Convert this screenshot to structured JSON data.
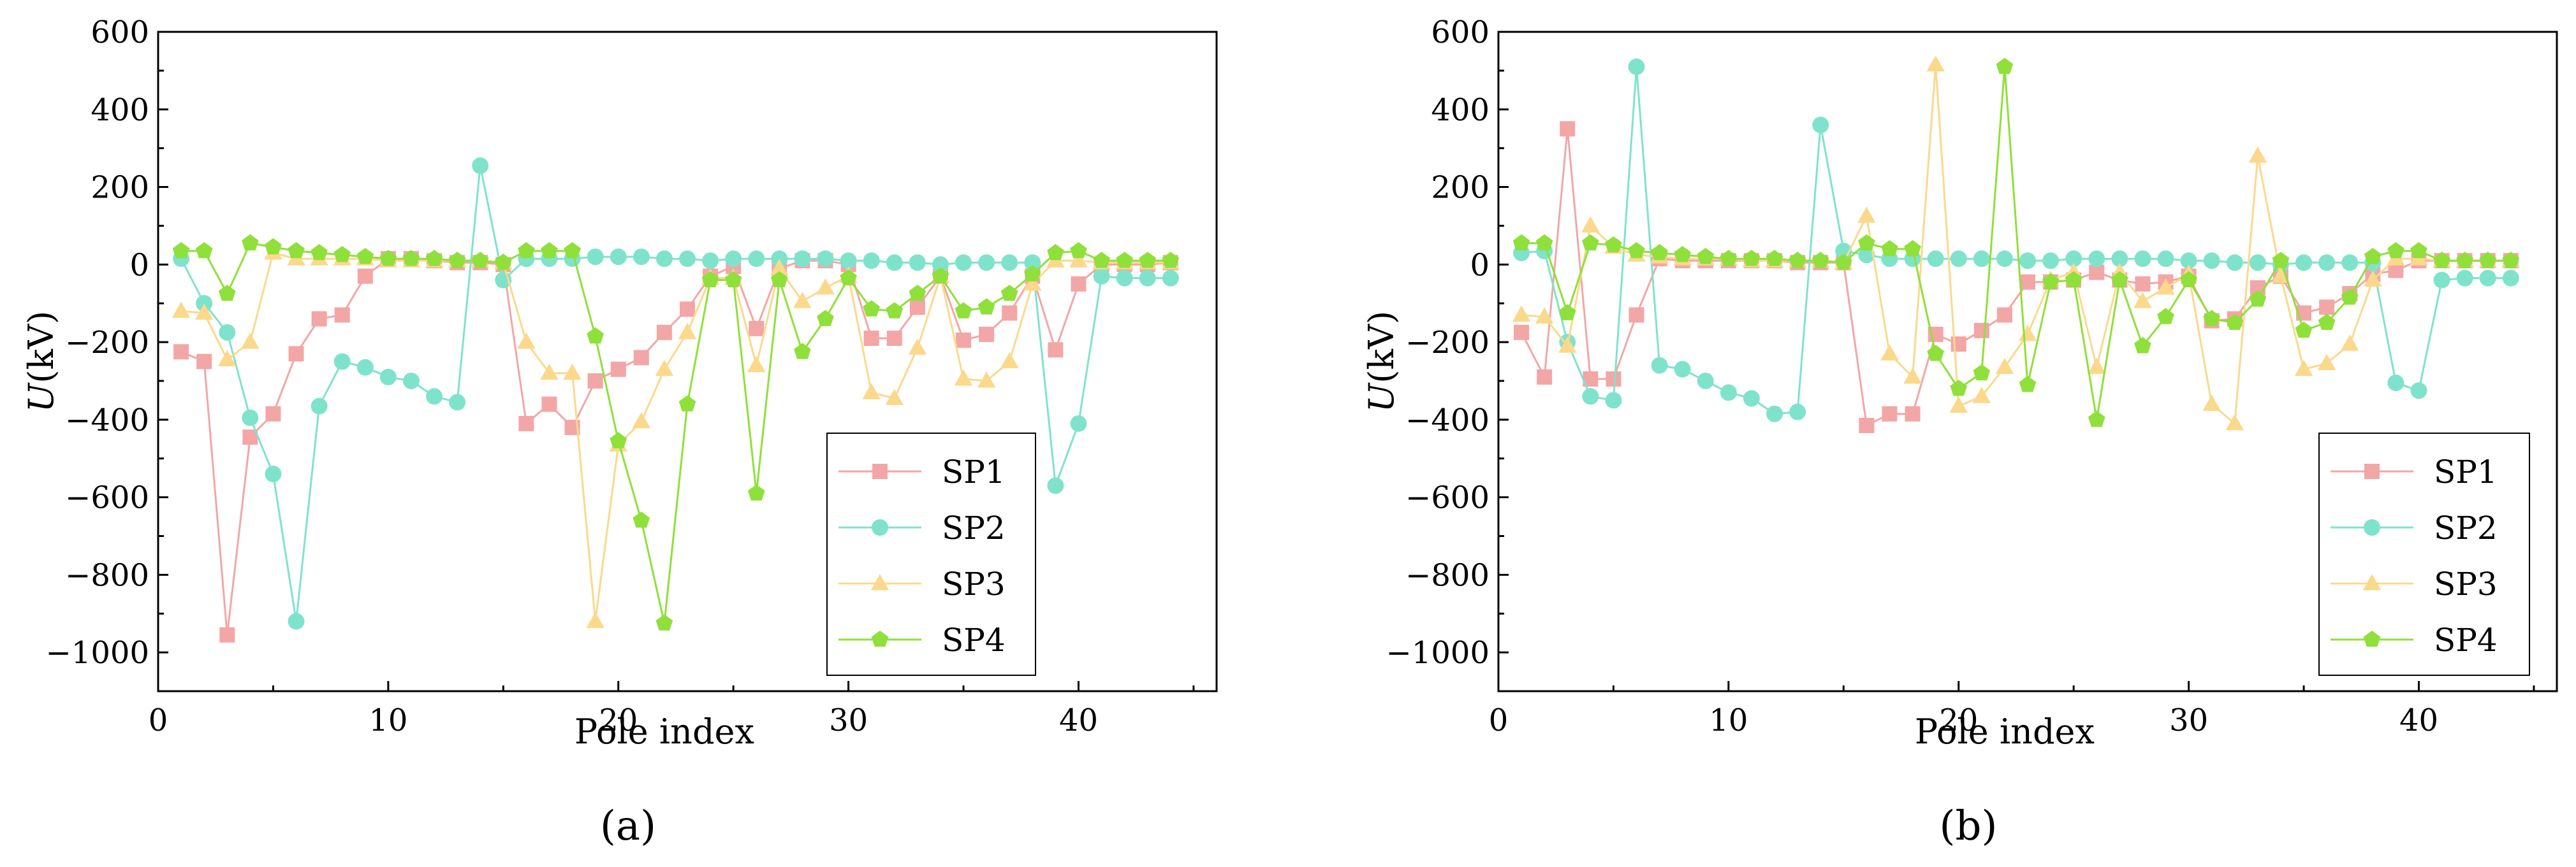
{
  "chart_data": [
    {
      "panel": "(a)",
      "type": "line",
      "xlabel": "Pole index",
      "ylabel_italic": "U",
      "ylabel_unit": "(kV)",
      "xlim": [
        0,
        46
      ],
      "ylim": [
        -1100,
        600
      ],
      "xticks": [
        0,
        10,
        20,
        30,
        40
      ],
      "yticks": [
        600,
        400,
        200,
        0,
        -200,
        -400,
        -600,
        -800,
        -1000
      ],
      "ytick_labels": [
        "600",
        "400",
        "200",
        "0",
        "−200",
        "−400",
        "−600",
        "−800",
        "−1000"
      ],
      "x": [
        1,
        2,
        3,
        4,
        5,
        6,
        7,
        8,
        9,
        10,
        11,
        12,
        13,
        14,
        15,
        16,
        17,
        18,
        19,
        20,
        21,
        22,
        23,
        24,
        25,
        26,
        27,
        28,
        29,
        30,
        31,
        32,
        33,
        34,
        35,
        36,
        37,
        38,
        39,
        40,
        41,
        42,
        43,
        44
      ],
      "series": [
        {
          "name": "SP1",
          "color": "#f3a6a6",
          "marker": "square",
          "values": [
            -225,
            -250,
            -955,
            -445,
            -385,
            -230,
            -140,
            -130,
            -30,
            15,
            15,
            10,
            5,
            5,
            0,
            -410,
            -360,
            -420,
            -300,
            -270,
            -240,
            -175,
            -115,
            -30,
            -5,
            -165,
            -10,
            10,
            10,
            0,
            -190,
            -190,
            -110,
            -30,
            -195,
            -180,
            -125,
            -30,
            -220,
            -50,
            0,
            0,
            0,
            5
          ]
        },
        {
          "name": "SP2",
          "color": "#7fe3cc",
          "marker": "circle",
          "values": [
            15,
            -100,
            -175,
            -395,
            -540,
            -920,
            -365,
            -250,
            -265,
            -290,
            -300,
            -340,
            -355,
            255,
            -40,
            15,
            15,
            15,
            20,
            20,
            20,
            15,
            15,
            10,
            15,
            15,
            15,
            15,
            15,
            10,
            10,
            5,
            5,
            0,
            5,
            5,
            5,
            5,
            -570,
            -410,
            -30,
            -35,
            -35,
            -35
          ]
        },
        {
          "name": "SP3",
          "color": "#fbd98c",
          "marker": "triangle",
          "values": [
            -120,
            -125,
            -245,
            -200,
            30,
            15,
            15,
            15,
            15,
            10,
            10,
            10,
            10,
            10,
            5,
            -200,
            -280,
            -280,
            -920,
            -465,
            -405,
            -270,
            -175,
            -35,
            -35,
            -260,
            -10,
            -95,
            -60,
            -30,
            -330,
            -345,
            -215,
            -30,
            -295,
            -300,
            -250,
            -50,
            10,
            10,
            5,
            5,
            5,
            5
          ]
        },
        {
          "name": "SP4",
          "color": "#8fe03a",
          "marker": "pentagon",
          "values": [
            35,
            35,
            -75,
            55,
            45,
            35,
            30,
            25,
            20,
            15,
            15,
            15,
            10,
            10,
            5,
            35,
            35,
            35,
            -185,
            -455,
            -660,
            -925,
            -360,
            -40,
            -40,
            -590,
            -40,
            -225,
            -140,
            -35,
            -115,
            -120,
            -75,
            -30,
            -120,
            -110,
            -75,
            -25,
            30,
            35,
            10,
            10,
            10,
            10
          ]
        }
      ]
    },
    {
      "panel": "(b)",
      "type": "line",
      "xlabel": "Pole index",
      "ylabel_italic": "U",
      "ylabel_unit": "(kV)",
      "xlim": [
        0,
        46
      ],
      "ylim": [
        -1100,
        600
      ],
      "xticks": [
        0,
        10,
        20,
        30,
        40
      ],
      "yticks": [
        600,
        400,
        200,
        0,
        -200,
        -400,
        -600,
        -800,
        -1000
      ],
      "ytick_labels": [
        "600",
        "400",
        "200",
        "0",
        "−200",
        "−400",
        "−600",
        "−800",
        "−1000"
      ],
      "x": [
        1,
        2,
        3,
        4,
        5,
        6,
        7,
        8,
        9,
        10,
        11,
        12,
        13,
        14,
        15,
        16,
        17,
        18,
        19,
        20,
        21,
        22,
        23,
        24,
        25,
        26,
        27,
        28,
        29,
        30,
        31,
        32,
        33,
        34,
        35,
        36,
        37,
        38,
        39,
        40,
        41,
        42,
        43,
        44
      ],
      "series": [
        {
          "name": "SP1",
          "color": "#f3a6a6",
          "marker": "square",
          "values": [
            -175,
            -290,
            350,
            -295,
            -295,
            -130,
            15,
            10,
            10,
            10,
            10,
            10,
            5,
            5,
            5,
            -415,
            -385,
            -385,
            -180,
            -205,
            -170,
            -130,
            -45,
            -45,
            -40,
            -20,
            -40,
            -50,
            -45,
            -30,
            -145,
            -140,
            -60,
            -30,
            -125,
            -110,
            -75,
            -25,
            -15,
            10,
            10,
            10,
            10,
            10
          ]
        },
        {
          "name": "SP2",
          "color": "#7fe3cc",
          "marker": "circle",
          "values": [
            30,
            35,
            -200,
            -340,
            -350,
            510,
            -260,
            -270,
            -300,
            -330,
            -345,
            -385,
            -380,
            360,
            35,
            25,
            15,
            15,
            15,
            15,
            15,
            15,
            10,
            10,
            15,
            15,
            15,
            15,
            15,
            10,
            10,
            5,
            5,
            0,
            5,
            5,
            5,
            5,
            -305,
            -325,
            -40,
            -35,
            -35,
            -35
          ]
        },
        {
          "name": "SP3",
          "color": "#fbd98c",
          "marker": "triangle",
          "values": [
            -130,
            -135,
            -210,
            100,
            45,
            25,
            20,
            15,
            15,
            15,
            10,
            10,
            10,
            10,
            5,
            125,
            -230,
            -290,
            515,
            -365,
            -340,
            -265,
            -180,
            -40,
            -20,
            -265,
            -20,
            -95,
            -60,
            -25,
            -360,
            -410,
            280,
            -30,
            -270,
            -255,
            -205,
            -40,
            15,
            15,
            10,
            10,
            10,
            10
          ]
        },
        {
          "name": "SP4",
          "color": "#8fe03a",
          "marker": "pentagon",
          "values": [
            55,
            55,
            -125,
            55,
            50,
            35,
            30,
            25,
            20,
            15,
            15,
            15,
            10,
            10,
            5,
            55,
            40,
            40,
            -230,
            -320,
            -280,
            510,
            -310,
            -45,
            -40,
            -400,
            -40,
            -210,
            -135,
            -40,
            -140,
            -150,
            -90,
            10,
            -170,
            -150,
            -85,
            20,
            35,
            35,
            10,
            10,
            10,
            10
          ]
        }
      ]
    }
  ]
}
